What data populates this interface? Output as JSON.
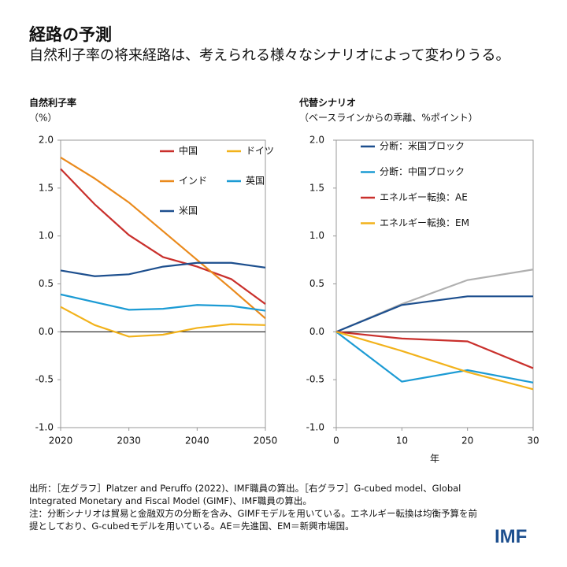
{
  "header": {
    "title": "経路の予測",
    "subtitle": "自然利子率の将来経路は、考えられる様々なシナリオによって変わりうる。"
  },
  "chart_data": [
    {
      "type": "line",
      "title": "自然利子率",
      "subtitle": "（%）",
      "x": [
        2020,
        2025,
        2030,
        2035,
        2040,
        2045,
        2050
      ],
      "xlim": [
        2020,
        2050
      ],
      "xticks": [
        2020,
        2030,
        2040,
        2050
      ],
      "ylim": [
        -1,
        2
      ],
      "yticks": [
        {
          "value": 2,
          "label": "2.0"
        },
        {
          "value": 1.5,
          "label": "1.5"
        },
        {
          "value": 1,
          "label": "1.0"
        },
        {
          "value": 0.5,
          "label": "0.5"
        },
        {
          "value": 0,
          "label": "0.0"
        },
        {
          "value": -0.5,
          "label": "-0.5"
        },
        {
          "value": -1,
          "label": "-1.0"
        }
      ],
      "series": [
        {
          "name": "中国",
          "color": "#c9302c",
          "values": [
            1.7,
            1.33,
            1.01,
            0.78,
            0.68,
            0.55,
            0.29
          ]
        },
        {
          "name": "ドイツ",
          "color": "#f2b21b",
          "values": [
            0.26,
            0.07,
            -0.05,
            -0.03,
            0.04,
            0.08,
            0.07
          ]
        },
        {
          "name": "インド",
          "color": "#ea8a1c",
          "values": [
            1.82,
            1.6,
            1.35,
            1.05,
            0.75,
            0.45,
            0.14
          ]
        },
        {
          "name": "英国",
          "color": "#1c9bd4",
          "values": [
            0.39,
            0.31,
            0.23,
            0.24,
            0.28,
            0.27,
            0.22
          ]
        },
        {
          "name": "米国",
          "color": "#1d4f8e",
          "values": [
            0.64,
            0.58,
            0.6,
            0.68,
            0.72,
            0.72,
            0.67
          ]
        }
      ]
    },
    {
      "type": "line",
      "title": "代替シナリオ",
      "subtitle": "（ベースラインからの乖離、%ポイント）",
      "xlabel": "年",
      "x": [
        0,
        10,
        20,
        30
      ],
      "xlim": [
        0,
        30
      ],
      "xticks": [
        0,
        10,
        20,
        30
      ],
      "ylim": [
        -1,
        2
      ],
      "yticks": [
        {
          "value": 2,
          "label": "2.0"
        },
        {
          "value": 1.5,
          "label": "1.5"
        },
        {
          "value": 1,
          "label": "1.0"
        },
        {
          "value": 0.5,
          "label": "0.5"
        },
        {
          "value": 0,
          "label": "0.0"
        },
        {
          "value": -0.5,
          "label": "-0.5"
        },
        {
          "value": -1,
          "label": "-1.0"
        }
      ],
      "series": [
        {
          "color": "#b0b0b0",
          "values": [
            0,
            0.29,
            0.54,
            0.65
          ]
        },
        {
          "name": "分断：米国ブロック",
          "color": "#1d4f8e",
          "values": [
            0,
            0.28,
            0.37,
            0.37
          ]
        },
        {
          "name": "分断：中国ブロック",
          "color": "#1c9bd4",
          "values": [
            0,
            -0.52,
            -0.4,
            -0.53
          ]
        },
        {
          "name": "エネルギー転換：AE",
          "color": "#c9302c",
          "values": [
            0,
            -0.07,
            -0.1,
            -0.38
          ]
        },
        {
          "name": "エネルギー転換：EM",
          "color": "#f2b21b",
          "values": [
            0,
            -0.2,
            -0.42,
            -0.6
          ]
        }
      ]
    }
  ],
  "footnote": {
    "source": "出所：［左グラフ］Platzer and Peruffo (2022)、IMF職員の算出。［右グラフ］G-cubed model、Global Integrated Monetary and Fiscal Model (GIMF)、IMF職員の算出。",
    "note": "注：分断シナリオは貿易と金融双方の分断を含み、GIMFモデルを用いている。エネルギー転換は均衡予算を前提としており、G-cubedモデルを用いている。AE＝先進国、EM＝新興市場国。"
  },
  "logo": "IMF"
}
